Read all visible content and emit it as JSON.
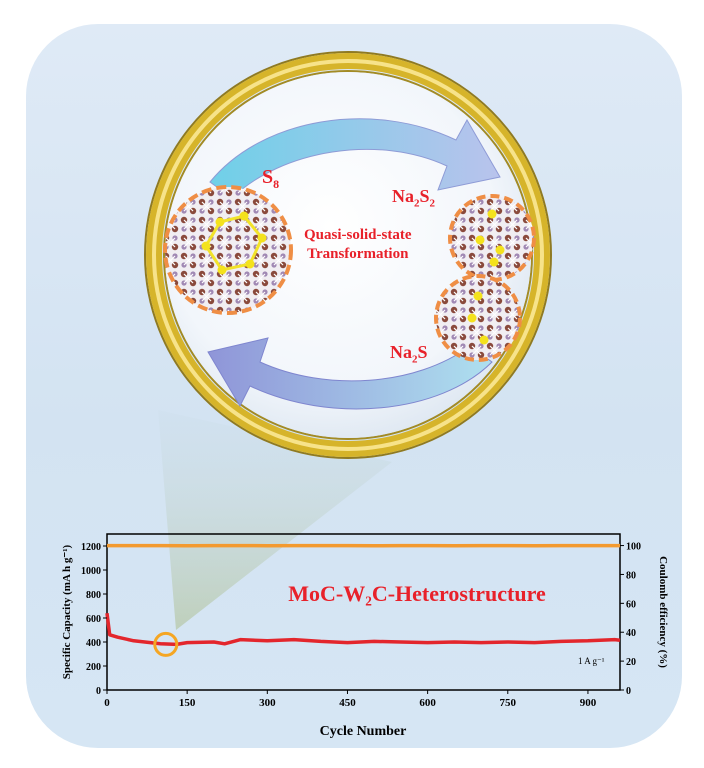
{
  "illustration": {
    "label_s8": "S",
    "label_s8_sub": "8",
    "label_na2s2_a": "Na",
    "label_na2s2_b": "2",
    "label_na2s2_c": "S",
    "label_na2s2_d": "2",
    "label_na2s_a": "Na",
    "label_na2s_b": "2",
    "label_na2s_c": "S",
    "transformation_line1": "Quasi-solid-state",
    "transformation_line2": "Transformation",
    "colors": {
      "label": "#e8212a",
      "ring": "#d4b22a",
      "arrow": "#9aa8dc"
    }
  },
  "chart_data": {
    "type": "line",
    "title": "",
    "annotation": "MoC-W₂C-Heterostructure",
    "rate_label": "1 A g⁻¹",
    "xlabel": "Cycle Number",
    "ylabel": "Specific Capacity (mA h g⁻¹)",
    "y2label": "Coulomb efficiency (%)",
    "xlim": [
      0,
      960
    ],
    "ylim": [
      0,
      1300
    ],
    "y2lim": [
      0,
      108
    ],
    "x_ticks": [
      "0",
      "150",
      "300",
      "450",
      "600",
      "750",
      "900"
    ],
    "y_ticks": [
      "0",
      "200",
      "400",
      "600",
      "800",
      "1000",
      "1200"
    ],
    "y2_ticks": [
      "0",
      "20",
      "40",
      "60",
      "80",
      "100"
    ],
    "series": [
      {
        "axis": "left",
        "color": "#e3262c",
        "x": [
          0,
          5,
          20,
          50,
          100,
          130,
          150,
          200,
          220,
          250,
          300,
          350,
          400,
          450,
          500,
          550,
          600,
          650,
          700,
          750,
          800,
          850,
          900,
          950,
          960
        ],
        "values": [
          640,
          460,
          440,
          410,
          385,
          380,
          395,
          400,
          385,
          420,
          410,
          420,
          405,
          395,
          405,
          400,
          395,
          400,
          395,
          400,
          395,
          405,
          410,
          420,
          415
        ]
      },
      {
        "axis": "right",
        "color": "#f39a2f",
        "x": [
          0,
          50,
          100,
          150,
          200,
          250,
          300,
          350,
          400,
          450,
          500,
          550,
          600,
          650,
          700,
          750,
          800,
          850,
          900,
          950,
          960
        ],
        "values": [
          100,
          100,
          100,
          99.8,
          100,
          100,
          99.9,
          100,
          100,
          100,
          99.8,
          100,
          100,
          99.9,
          100,
          100,
          99.9,
          100,
          100,
          100,
          100
        ]
      }
    ],
    "highlight_cycle": 110,
    "highlight_capacity": 380
  }
}
